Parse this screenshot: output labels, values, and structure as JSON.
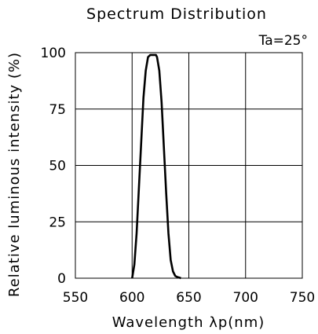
{
  "chart_data": {
    "type": "line",
    "title": "Spectrum Distribution",
    "xlabel": "Wavelength λp(nm)",
    "ylabel": "Relative luminous intensity (%)",
    "annotation": "Ta=25°",
    "xlim": [
      550,
      750
    ],
    "ylim": [
      0,
      100
    ],
    "x_ticks": [
      "550",
      "600",
      "650",
      "700",
      "750"
    ],
    "y_ticks": [
      "0",
      "25",
      "50",
      "75",
      "100"
    ],
    "grid": true,
    "series": [
      {
        "x": [
          600,
          602,
          604,
          606,
          608,
          610,
          612,
          614,
          616,
          618,
          620,
          621,
          622,
          624,
          626,
          628,
          630,
          632,
          634,
          636,
          638,
          640,
          642,
          643
        ],
        "y": [
          0,
          6,
          20,
          40,
          60,
          80,
          92,
          98,
          99,
          99,
          99,
          99,
          98,
          92,
          78,
          58,
          38,
          20,
          8,
          3,
          1,
          0.5,
          0.2,
          0
        ]
      }
    ]
  }
}
